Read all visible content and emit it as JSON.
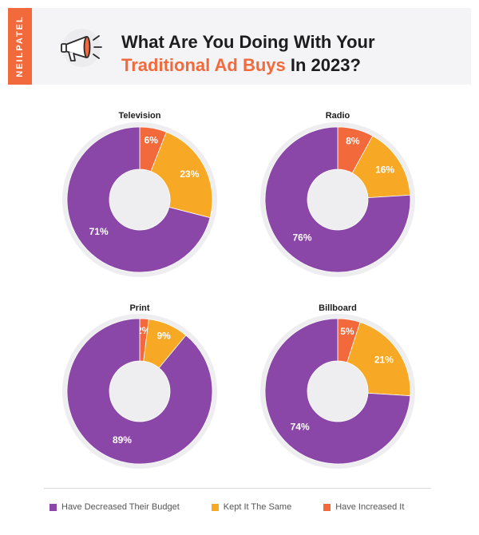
{
  "header": {
    "brand": "NEILPATEL",
    "title_line1": "What Are You Doing With Your",
    "title_highlight": "Traditional Ad Buys",
    "title_rest": " In 2023?",
    "icon": "megaphone-icon"
  },
  "colors": {
    "decreased": "#8b47a8",
    "kept": "#f7a925",
    "increased": "#f26a3c",
    "ring": "#eeeef0",
    "accent": "#f26a3c"
  },
  "legend": [
    {
      "label": "Have Decreased Their Budget",
      "color": "#8b47a8"
    },
    {
      "label": "Kept It The Same",
      "color": "#f7a925"
    },
    {
      "label": "Have Increased It",
      "color": "#f26a3c"
    }
  ],
  "chart_data": [
    {
      "type": "pie",
      "title": "Television",
      "labels": [
        "Have Increased It",
        "Kept It The Same",
        "Have Decreased Their Budget"
      ],
      "values": [
        6,
        23,
        71
      ]
    },
    {
      "type": "pie",
      "title": "Radio",
      "labels": [
        "Have Increased It",
        "Kept It The Same",
        "Have Decreased Their Budget"
      ],
      "values": [
        8,
        16,
        76
      ]
    },
    {
      "type": "pie",
      "title": "Print",
      "labels": [
        "Have Increased It",
        "Kept It The Same",
        "Have Decreased Their Budget"
      ],
      "values": [
        2,
        9,
        89
      ]
    },
    {
      "type": "pie",
      "title": "Billboard",
      "labels": [
        "Have Increased It",
        "Kept It The Same",
        "Have Decreased Their Budget"
      ],
      "values": [
        5,
        21,
        74
      ]
    }
  ]
}
